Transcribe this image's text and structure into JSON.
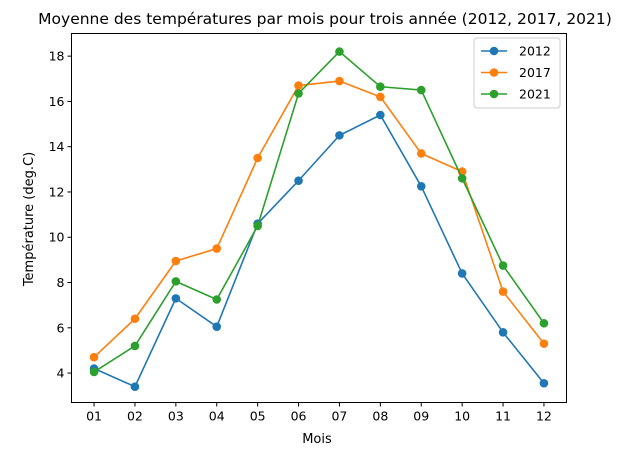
{
  "chart_data": {
    "type": "line",
    "title": "Moyenne des températures par mois pour trois année (2012, 2017, 2021)",
    "xlabel": "Mois",
    "ylabel": "Température (deg.C)",
    "categories": [
      "01",
      "02",
      "03",
      "04",
      "05",
      "06",
      "07",
      "08",
      "09",
      "10",
      "11",
      "12"
    ],
    "ylim": [
      2.7,
      19.0
    ],
    "yticks": [
      4,
      6,
      8,
      10,
      12,
      14,
      16,
      18
    ],
    "grid": false,
    "legend_position": "top-right",
    "series": [
      {
        "name": "2012",
        "color": "#1f77b4",
        "values": [
          4.2,
          3.4,
          7.3,
          6.05,
          10.6,
          12.5,
          14.5,
          15.4,
          12.25,
          8.4,
          5.8,
          3.55
        ]
      },
      {
        "name": "2017",
        "color": "#ff7f0e",
        "values": [
          4.7,
          6.4,
          8.95,
          9.5,
          13.5,
          16.7,
          16.9,
          16.2,
          13.7,
          12.9,
          7.6,
          5.3
        ]
      },
      {
        "name": "2021",
        "color": "#2ca02c",
        "values": [
          4.05,
          5.2,
          8.05,
          7.25,
          10.5,
          16.35,
          18.2,
          16.65,
          16.5,
          12.6,
          8.75,
          6.2
        ]
      }
    ]
  }
}
